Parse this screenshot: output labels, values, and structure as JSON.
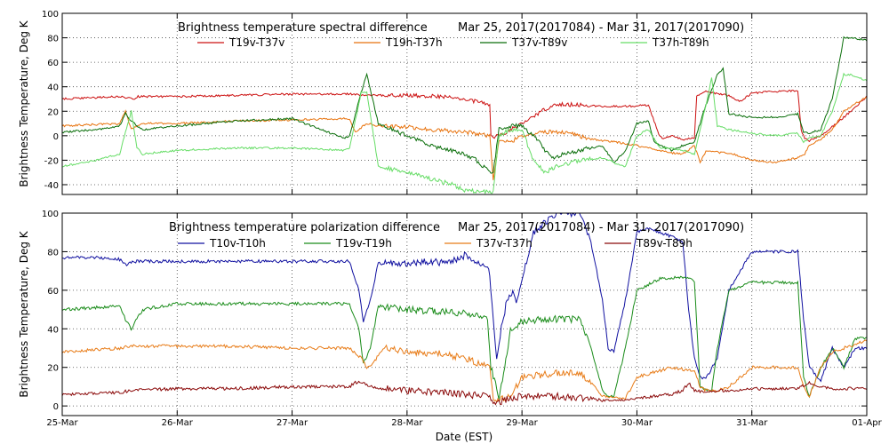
{
  "figure": {
    "xlabel": "Date (EST)",
    "x_ticks": [
      "25-Mar",
      "26-Mar",
      "27-Mar",
      "28-Mar",
      "29-Mar",
      "30-Mar",
      "31-Mar",
      "01-Apr"
    ]
  },
  "chart_data": [
    {
      "type": "line",
      "title": "Brightness temperature spectral difference",
      "date_range": "Mar 25, 2017(2017084) - Mar 31, 2017(2017090)",
      "ylabel": "Brightness Temperature, Deg K",
      "ylim": [
        -48,
        100
      ],
      "yticks": [
        -40,
        -20,
        0,
        20,
        40,
        60,
        80,
        100
      ],
      "xlim": [
        0,
        7
      ],
      "x_unit": "days since 25-Mar 00:00 EST",
      "grid": true,
      "legend_position": "top",
      "series": [
        {
          "name": "T19v-T37v",
          "color": "#cc1010",
          "x": [
            0.0,
            0.5,
            0.62,
            0.66,
            0.7,
            1.0,
            1.5,
            2.0,
            2.55,
            2.6,
            2.7,
            3.0,
            3.3,
            3.5,
            3.6,
            3.72,
            3.73,
            3.8,
            3.85,
            4.0,
            4.2,
            4.3,
            4.5,
            4.7,
            4.9,
            5.1,
            5.2,
            5.23,
            5.3,
            5.4,
            5.5,
            5.52,
            5.6,
            5.8,
            5.9,
            6.0,
            6.2,
            6.4,
            6.43,
            6.46,
            6.5,
            6.6,
            6.8,
            7.0
          ],
          "y": [
            30,
            32,
            30,
            32,
            32,
            32,
            33,
            34,
            34,
            33,
            33,
            33,
            32,
            30,
            28,
            25,
            -1,
            0,
            2,
            10,
            22,
            26,
            25,
            24,
            24,
            25,
            -1,
            -2,
            0,
            -3,
            -2,
            33,
            36,
            33,
            28,
            35,
            36,
            37,
            4,
            -2,
            -4,
            0,
            15,
            32
          ]
        },
        {
          "name": "T19h-T37h",
          "color": "#e8720c",
          "x": [
            0.0,
            0.5,
            0.55,
            0.6,
            0.65,
            0.7,
            1.0,
            1.5,
            2.0,
            2.5,
            2.55,
            2.65,
            2.75,
            3.0,
            3.2,
            3.4,
            3.6,
            3.72,
            3.75,
            3.8,
            3.9,
            4.0,
            4.2,
            4.4,
            4.5,
            4.6,
            4.8,
            5.0,
            5.2,
            5.3,
            5.4,
            5.5,
            5.55,
            5.6,
            5.8,
            6.0,
            6.2,
            6.4,
            6.46,
            6.5,
            6.6,
            6.7,
            6.8,
            7.0
          ],
          "y": [
            8,
            10,
            20,
            5,
            8,
            10,
            10,
            12,
            13,
            14,
            3,
            10,
            8,
            7,
            5,
            4,
            2,
            0,
            -35,
            -5,
            -5,
            0,
            3,
            3,
            0,
            -3,
            -5,
            -8,
            -12,
            -14,
            -15,
            -8,
            -22,
            -13,
            -14,
            -20,
            -22,
            -18,
            -15,
            -8,
            -3,
            5,
            20,
            32
          ]
        },
        {
          "name": "T37v-T89v",
          "color": "#0a6e0a",
          "x": [
            0.0,
            0.3,
            0.5,
            0.55,
            0.6,
            0.65,
            0.7,
            1.0,
            1.5,
            2.0,
            2.45,
            2.5,
            2.6,
            2.65,
            2.75,
            3.0,
            3.2,
            3.4,
            3.5,
            3.6,
            3.72,
            3.75,
            3.8,
            3.9,
            4.0,
            4.1,
            4.15,
            4.25,
            4.5,
            4.7,
            4.75,
            4.8,
            4.9,
            5.0,
            5.1,
            5.15,
            5.2,
            5.3,
            5.4,
            5.5,
            5.6,
            5.7,
            5.75,
            5.8,
            6.0,
            6.2,
            6.4,
            6.45,
            6.5,
            6.6,
            6.7,
            6.8,
            6.85,
            7.0
          ],
          "y": [
            3,
            5,
            8,
            18,
            12,
            8,
            5,
            8,
            12,
            14,
            -2,
            0,
            35,
            50,
            10,
            0,
            -8,
            -12,
            -15,
            -20,
            -30,
            -30,
            5,
            8,
            8,
            0,
            -5,
            -18,
            -12,
            -8,
            -15,
            -22,
            -12,
            10,
            12,
            -5,
            -8,
            -12,
            -8,
            -5,
            25,
            50,
            55,
            18,
            15,
            15,
            18,
            3,
            2,
            5,
            30,
            80,
            80,
            78
          ]
        },
        {
          "name": "T37h-T89h",
          "color": "#66dd66",
          "x": [
            0.0,
            0.3,
            0.5,
            0.6,
            0.65,
            0.7,
            1.0,
            1.5,
            2.0,
            2.45,
            2.5,
            2.6,
            2.65,
            2.75,
            3.0,
            3.2,
            3.4,
            3.5,
            3.6,
            3.72,
            3.75,
            3.8,
            3.9,
            4.0,
            4.1,
            4.2,
            4.3,
            4.5,
            4.7,
            4.8,
            4.9,
            5.0,
            5.1,
            5.2,
            5.3,
            5.4,
            5.5,
            5.6,
            5.65,
            5.7,
            5.8,
            6.0,
            6.2,
            6.4,
            6.45,
            6.5,
            6.6,
            6.7,
            6.8,
            6.85,
            7.0
          ],
          "y": [
            -25,
            -20,
            -15,
            20,
            -10,
            -15,
            -12,
            -10,
            -10,
            -12,
            -10,
            35,
            35,
            -25,
            -30,
            -35,
            -40,
            -45,
            -45,
            -46,
            -46,
            0,
            5,
            5,
            -20,
            -30,
            -25,
            -20,
            -18,
            -22,
            -25,
            0,
            5,
            -10,
            -10,
            -12,
            -15,
            25,
            47,
            8,
            5,
            2,
            0,
            2,
            -5,
            -2,
            0,
            20,
            50,
            50,
            45
          ]
        }
      ]
    },
    {
      "type": "line",
      "title": "Brightness temperature polarization difference",
      "date_range": "Mar 25, 2017(2017084) - Mar 31, 2017(2017090)",
      "ylabel": "Brightness Temperature, Deg K",
      "ylim": [
        -5,
        100
      ],
      "yticks": [
        0,
        20,
        40,
        60,
        80,
        100
      ],
      "xlim": [
        0,
        7
      ],
      "x_unit": "days since 25-Mar 00:00 EST",
      "grid": true,
      "legend_position": "top",
      "series": [
        {
          "name": "T10v-T10h",
          "color": "#1010a0",
          "x": [
            0.0,
            0.3,
            0.5,
            0.55,
            0.62,
            0.7,
            1.0,
            1.5,
            2.0,
            2.5,
            2.58,
            2.62,
            2.68,
            2.75,
            3.0,
            3.2,
            3.35,
            3.5,
            3.7,
            3.72,
            3.78,
            3.82,
            3.87,
            3.92,
            3.95,
            4.0,
            4.1,
            4.3,
            4.5,
            4.6,
            4.7,
            4.75,
            4.8,
            4.9,
            5.0,
            5.1,
            5.2,
            5.3,
            5.4,
            5.45,
            5.5,
            5.55,
            5.6,
            5.7,
            5.8,
            6.0,
            6.2,
            6.4,
            6.45,
            6.5,
            6.6,
            6.7,
            6.8,
            6.9,
            7.0
          ],
          "y": [
            77,
            77,
            76,
            73,
            75,
            75,
            75,
            75,
            75,
            75,
            60,
            44,
            55,
            74,
            74,
            75,
            74,
            78,
            72,
            68,
            25,
            40,
            55,
            60,
            55,
            65,
            90,
            100,
            100,
            85,
            55,
            30,
            28,
            55,
            90,
            92,
            90,
            88,
            85,
            50,
            25,
            15,
            14,
            25,
            60,
            80,
            80,
            80,
            45,
            20,
            13,
            30,
            20,
            30,
            30
          ]
        },
        {
          "name": "T19v-T19h",
          "color": "#1a8c1a",
          "x": [
            0.0,
            0.3,
            0.5,
            0.55,
            0.6,
            0.7,
            1.0,
            1.5,
            2.0,
            2.5,
            2.58,
            2.62,
            2.68,
            2.75,
            3.0,
            3.5,
            3.7,
            3.73,
            3.8,
            3.85,
            3.9,
            4.0,
            4.2,
            4.5,
            4.6,
            4.7,
            4.75,
            4.8,
            4.9,
            5.0,
            5.2,
            5.4,
            5.5,
            5.55,
            5.6,
            5.65,
            5.7,
            5.8,
            6.0,
            6.2,
            6.4,
            6.45,
            6.5,
            6.6,
            6.7,
            6.8,
            6.9,
            7.0
          ],
          "y": [
            50,
            51,
            52,
            45,
            40,
            50,
            53,
            53,
            53,
            53,
            40,
            22,
            30,
            52,
            50,
            48,
            46,
            20,
            5,
            20,
            40,
            44,
            45,
            45,
            30,
            8,
            5,
            5,
            30,
            60,
            66,
            67,
            65,
            10,
            8,
            8,
            30,
            60,
            64,
            64,
            64,
            15,
            5,
            20,
            30,
            20,
            35,
            35
          ]
        },
        {
          "name": "T37v-T37h",
          "color": "#e87c18",
          "x": [
            0.0,
            0.5,
            0.6,
            0.7,
            1.0,
            1.5,
            2.0,
            2.5,
            2.6,
            2.65,
            2.7,
            2.8,
            3.0,
            3.3,
            3.5,
            3.72,
            3.75,
            3.8,
            3.9,
            4.0,
            4.3,
            4.5,
            4.6,
            4.7,
            4.8,
            4.9,
            5.0,
            5.3,
            5.4,
            5.5,
            5.55,
            5.6,
            5.7,
            5.8,
            6.0,
            6.3,
            6.4,
            6.45,
            6.5,
            6.6,
            6.7,
            6.8,
            6.9,
            7.0
          ],
          "y": [
            28,
            30,
            31,
            31,
            31,
            31,
            30,
            30,
            25,
            20,
            22,
            30,
            28,
            27,
            25,
            20,
            3,
            3,
            5,
            15,
            17,
            17,
            12,
            5,
            5,
            4,
            15,
            20,
            19,
            18,
            10,
            8,
            8,
            10,
            20,
            20,
            20,
            10,
            5,
            20,
            28,
            30,
            32,
            34
          ]
        },
        {
          "name": "T89v-T89h",
          "color": "#8b0a0a",
          "x": [
            0.0,
            0.5,
            0.6,
            1.0,
            1.5,
            2.0,
            2.5,
            2.55,
            2.6,
            2.7,
            2.8,
            3.0,
            3.3,
            3.5,
            3.72,
            3.75,
            3.8,
            3.9,
            4.0,
            4.3,
            4.5,
            4.6,
            4.7,
            4.8,
            4.9,
            5.0,
            5.3,
            5.4,
            5.45,
            5.5,
            5.6,
            5.7,
            5.8,
            6.0,
            6.2,
            6.4,
            6.5,
            6.6,
            6.7,
            6.8,
            7.0
          ],
          "y": [
            6,
            7,
            8,
            9,
            9,
            10,
            10,
            12,
            12,
            10,
            9,
            8,
            7,
            6,
            5,
            1,
            2,
            4,
            5,
            5,
            4,
            4,
            3,
            3,
            3,
            4,
            6,
            8,
            12,
            8,
            7,
            8,
            8,
            9,
            9,
            9,
            12,
            10,
            9,
            9,
            9
          ]
        }
      ]
    }
  ]
}
